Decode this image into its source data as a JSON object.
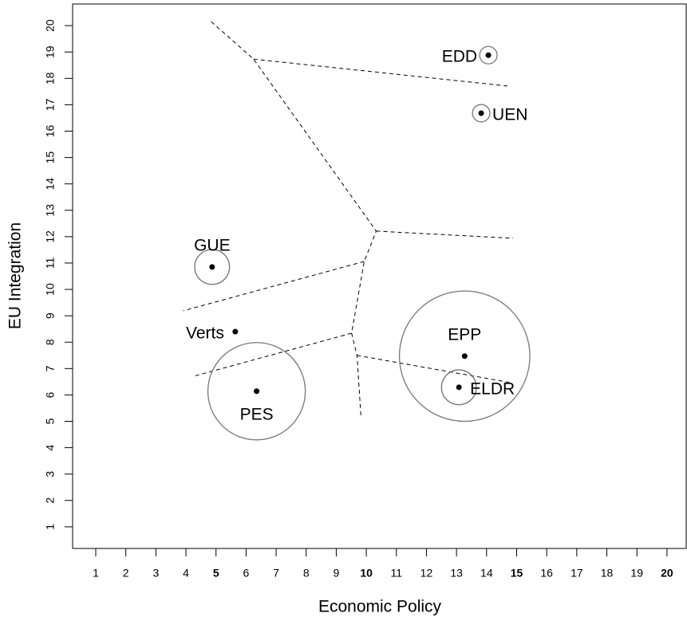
{
  "chart_data": {
    "type": "scatter",
    "xlabel": "Economic Policy",
    "ylabel": "EU Integration",
    "xlim": [
      0.23,
      20.64
    ],
    "ylim": [
      0.18,
      20.82
    ],
    "xticks": [
      1,
      2,
      3,
      4,
      5,
      6,
      7,
      8,
      9,
      10,
      11,
      12,
      13,
      14,
      15,
      16,
      17,
      18,
      19,
      20
    ],
    "yticks": [
      1,
      2,
      3,
      4,
      5,
      6,
      7,
      8,
      9,
      10,
      11,
      12,
      13,
      14,
      15,
      16,
      17,
      18,
      19,
      20
    ],
    "points": [
      {
        "label": "EDD",
        "x": 14.06,
        "y": 18.88,
        "size": 0.29,
        "label_pos": "left"
      },
      {
        "label": "UEN",
        "x": 13.82,
        "y": 16.68,
        "size": 0.29,
        "label_pos": "right"
      },
      {
        "label": "GUE",
        "x": 4.87,
        "y": 10.85,
        "size": 0.58,
        "label_pos": "top"
      },
      {
        "label": "Verts",
        "x": 5.64,
        "y": 8.4,
        "size": null,
        "label_pos": "left"
      },
      {
        "label": "PES",
        "x": 6.35,
        "y": 6.14,
        "size": 1.62,
        "label_pos": "bottom"
      },
      {
        "label": "EPP",
        "x": 13.27,
        "y": 7.47,
        "size": 2.17,
        "label_pos": "top"
      },
      {
        "label": "ELDR",
        "x": 13.08,
        "y": 6.29,
        "size": 0.58,
        "label_pos": "right"
      }
    ],
    "boundaries": [
      {
        "x": [
          4.84,
          6.25,
          10.33,
          9.93,
          9.51,
          9.69,
          9.82
        ],
        "y": [
          20.15,
          18.73,
          12.21,
          11.06,
          8.34,
          7.5,
          5.2
        ]
      },
      {
        "x": [
          6.25,
          14.7
        ],
        "y": [
          18.73,
          17.71
        ]
      },
      {
        "x": [
          10.33,
          14.88
        ],
        "y": [
          12.21,
          11.94
        ]
      },
      {
        "x": [
          9.93,
          3.91
        ],
        "y": [
          11.06,
          9.19
        ]
      },
      {
        "x": [
          9.51,
          4.26
        ],
        "y": [
          8.34,
          6.71
        ]
      },
      {
        "x": [
          9.69,
          14.78
        ],
        "y": [
          7.5,
          6.47
        ]
      }
    ]
  }
}
